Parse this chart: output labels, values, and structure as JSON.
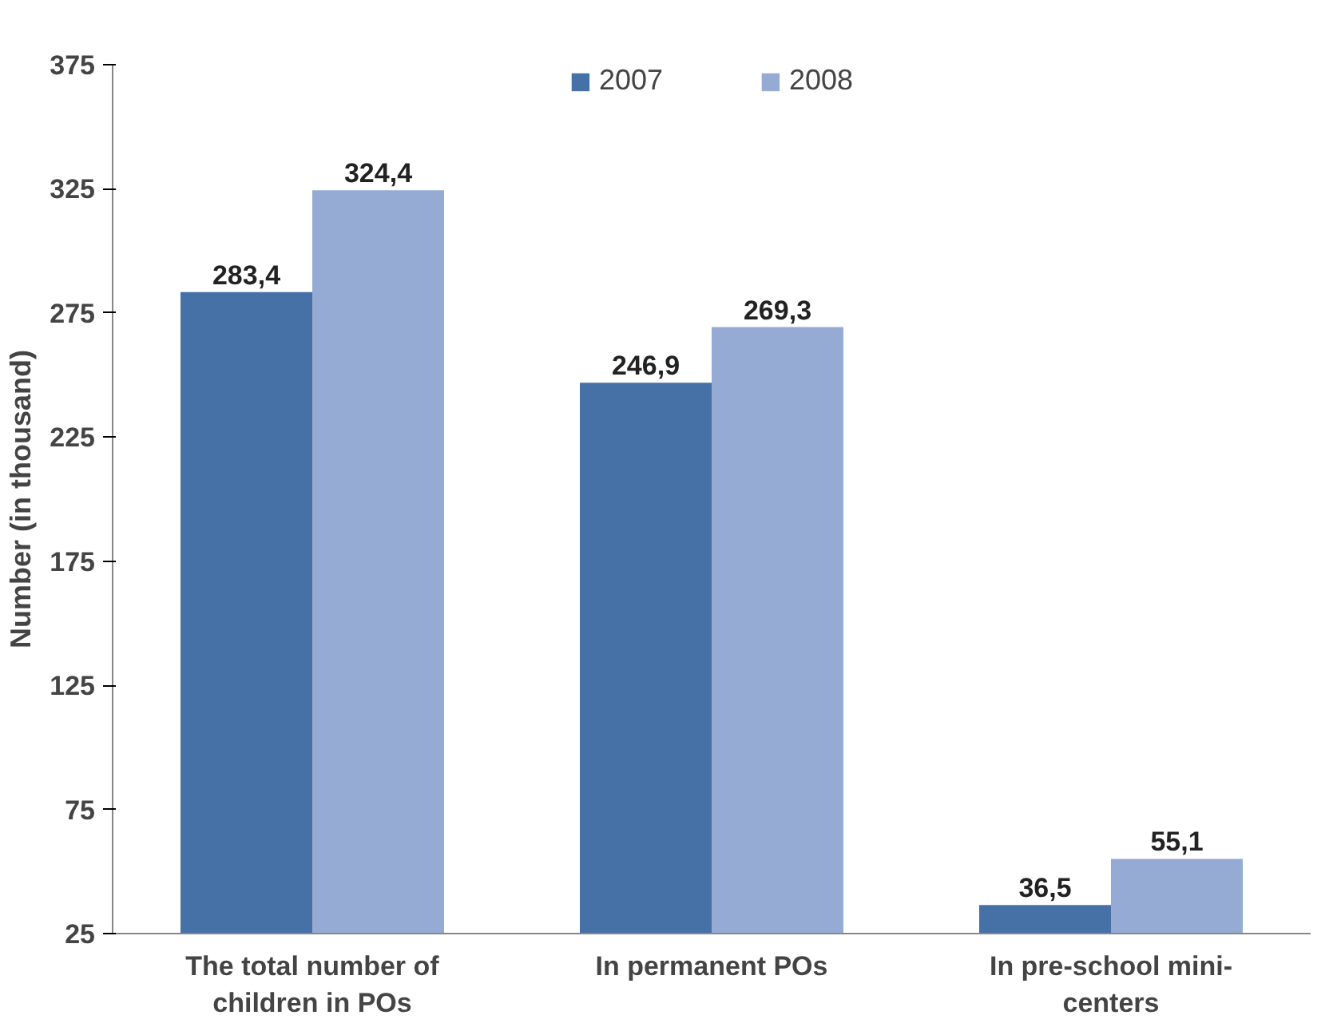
{
  "chart_data": {
    "type": "bar",
    "ylabel": "Number (in thousand)",
    "categories": [
      "The total number of children in POs",
      "In permanent POs",
      "In pre-school mini-centers"
    ],
    "series": [
      {
        "name": "2007",
        "color": "#4571a7",
        "values": [
          283.4,
          246.9,
          36.5
        ],
        "value_labels": [
          "283,4",
          "246,9",
          "36,5"
        ]
      },
      {
        "name": "2008",
        "color": "#95abd3",
        "values": [
          324.4,
          269.3,
          55.1
        ],
        "value_labels": [
          "324,4",
          "269,3",
          "55,1"
        ]
      }
    ],
    "ylim": [
      25,
      375
    ],
    "yticks": [
      25,
      75,
      125,
      175,
      225,
      275,
      325,
      375
    ],
    "grid": false,
    "legend": "top"
  }
}
